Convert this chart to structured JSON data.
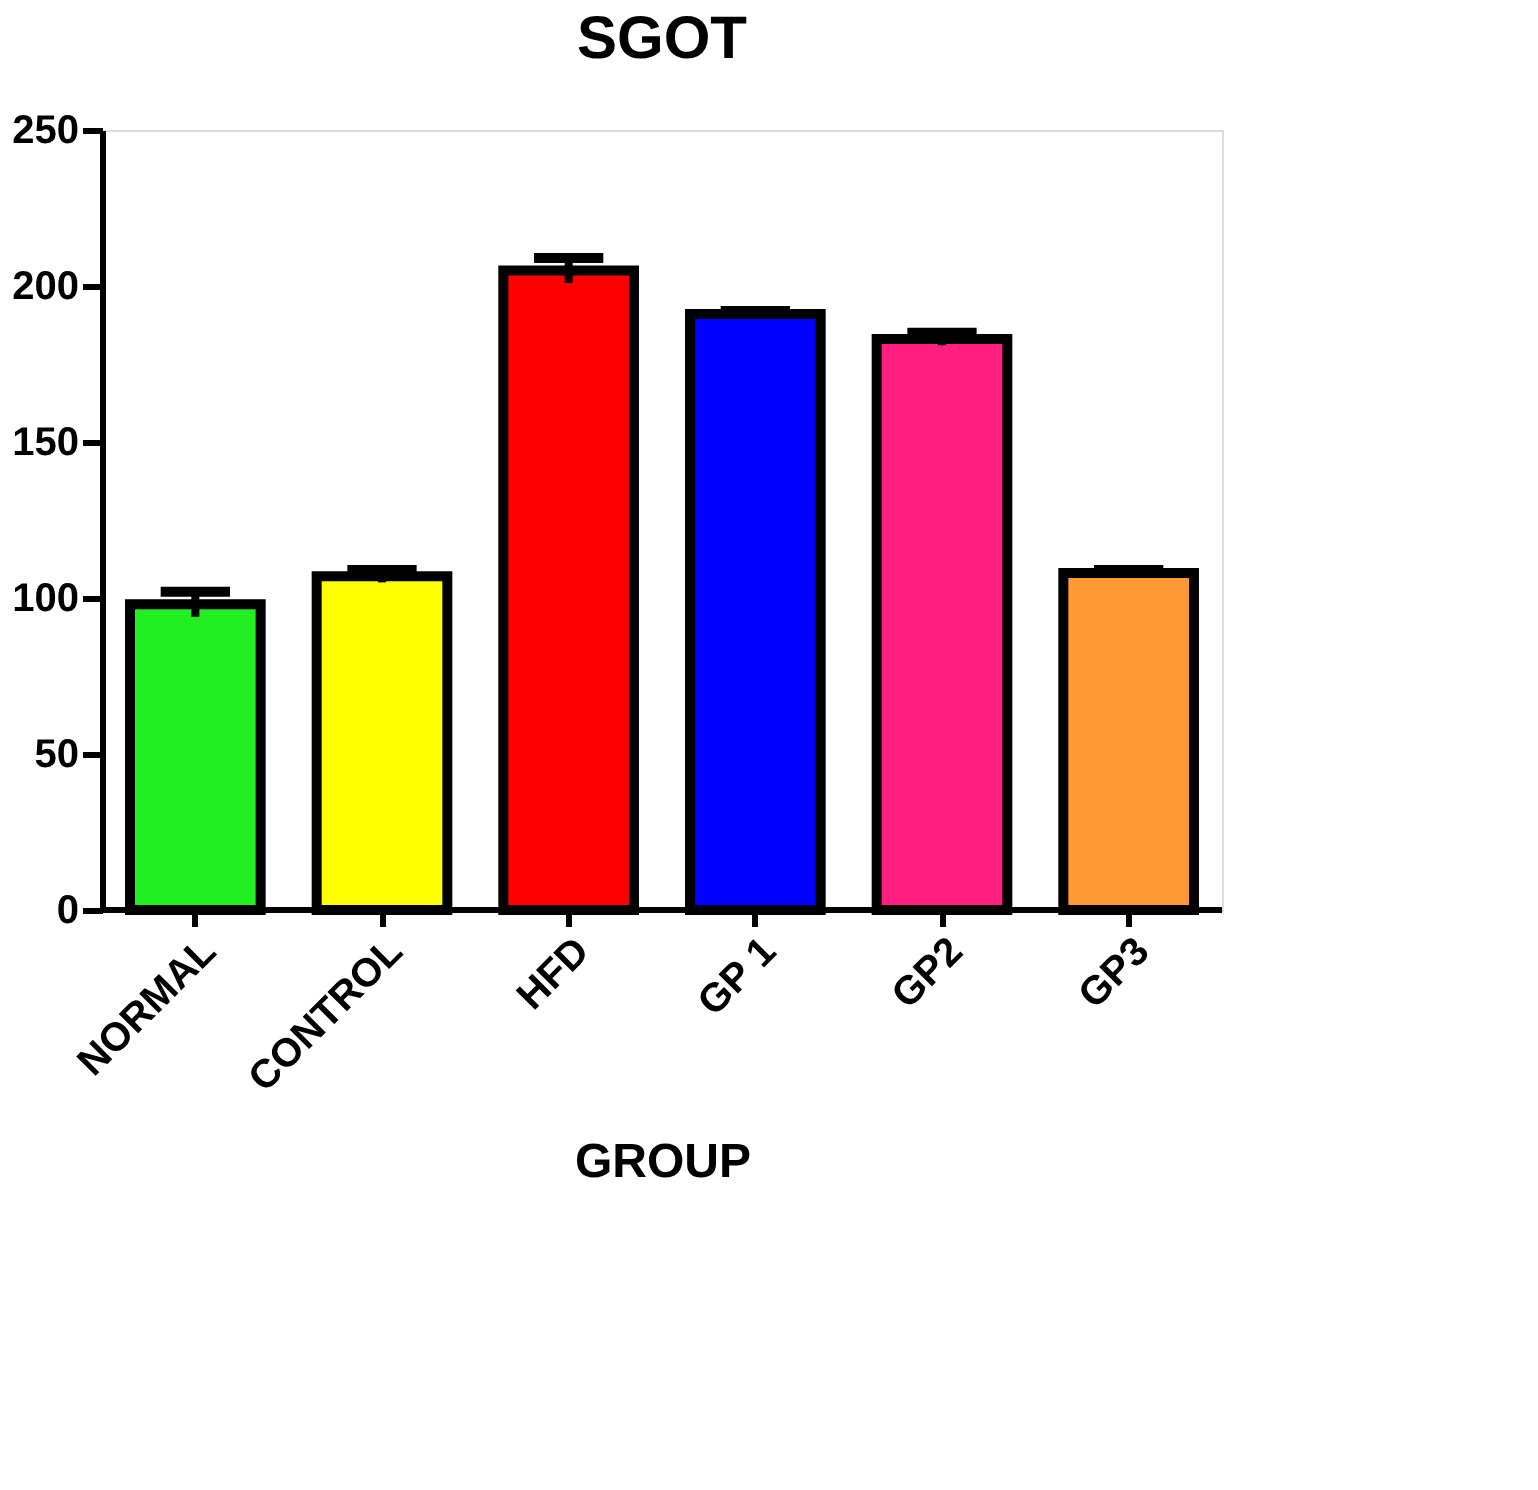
{
  "chart_data": {
    "type": "bar",
    "title": "SGOT",
    "xlabel": "GROUP",
    "categories": [
      "NORMAL",
      "CONTROL",
      "HFD",
      "GP 1",
      "GP2",
      "GP3"
    ],
    "values": [
      98,
      107,
      205,
      191,
      183,
      108
    ],
    "errors": [
      4,
      2,
      4,
      1,
      2,
      1
    ],
    "colors": [
      "#22ee22",
      "#ffff00",
      "#ff0000",
      "#0000ff",
      "#ff1f7f",
      "#ff9933"
    ],
    "ylim": [
      0,
      250
    ],
    "yticks": [
      0,
      50,
      100,
      150,
      200,
      250
    ],
    "grid": false
  }
}
